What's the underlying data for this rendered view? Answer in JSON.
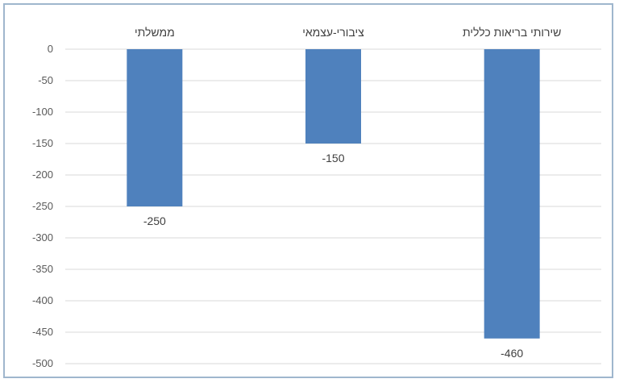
{
  "chart_data": {
    "type": "bar",
    "title": "",
    "xlabel": "",
    "ylabel": "",
    "categories": [
      "ממשלתי",
      "ציבורי-עצמאי",
      "שירותי בריאות כללית"
    ],
    "values": [
      -250,
      -150,
      -460
    ],
    "data_labels": [
      "-250",
      "-150",
      "-460"
    ],
    "ylim": [
      -500,
      0
    ],
    "y_ticks": [
      0,
      -50,
      -100,
      -150,
      -200,
      -250,
      -300,
      -350,
      -400,
      -450,
      -500
    ],
    "category_axis_position": "top",
    "grid": true,
    "legend": "none",
    "colors": {
      "bar": "#4f81bd",
      "grid": "#d9d9d9",
      "frame": "#9fb6cd"
    }
  }
}
